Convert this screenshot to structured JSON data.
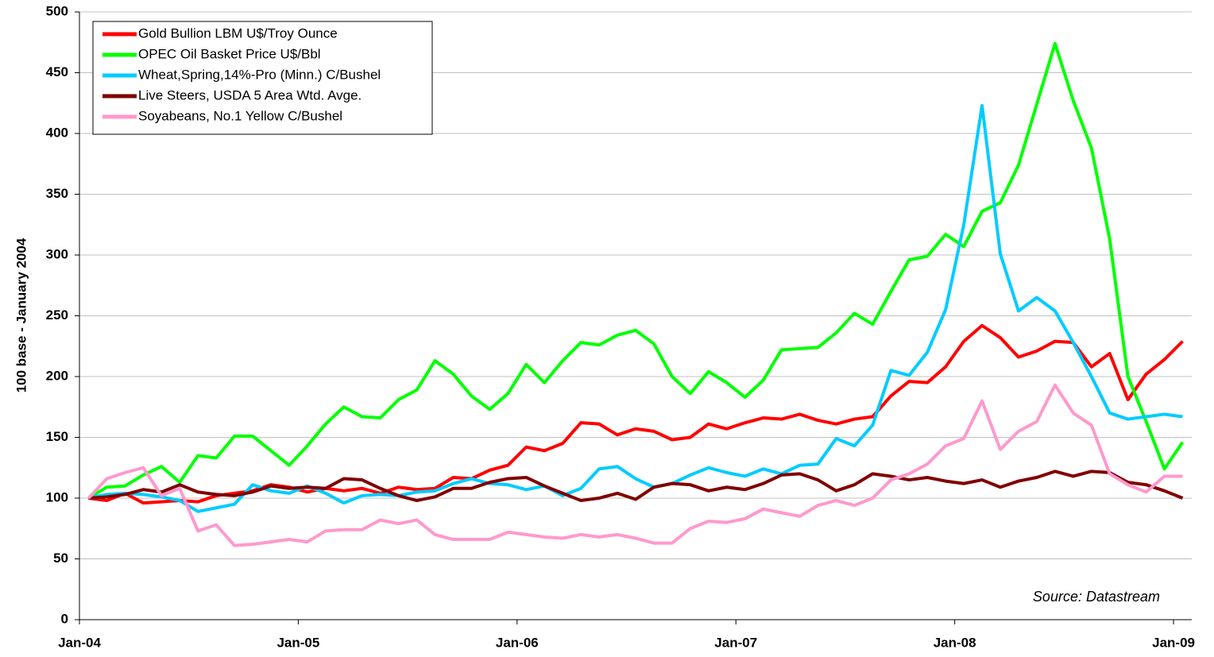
{
  "chart_data": {
    "type": "line",
    "ylabel": "100 base - January 2004",
    "annotation": "Source: Datastream",
    "categories": [
      "Jan-04",
      null,
      null,
      null,
      null,
      null,
      null,
      null,
      null,
      null,
      null,
      null,
      "Jan-05",
      null,
      null,
      null,
      null,
      null,
      null,
      null,
      null,
      null,
      null,
      null,
      "Jan-06",
      null,
      null,
      null,
      null,
      null,
      null,
      null,
      null,
      null,
      null,
      null,
      "Jan-07",
      null,
      null,
      null,
      null,
      null,
      null,
      null,
      null,
      null,
      null,
      null,
      "Jan-08",
      null,
      null,
      null,
      null,
      null,
      null,
      null,
      null,
      null,
      null,
      null,
      "Jan-09"
    ],
    "ylim": [
      0,
      500
    ],
    "yticks": [
      0,
      50,
      100,
      150,
      200,
      250,
      300,
      350,
      400,
      450,
      500
    ],
    "grid": true,
    "legend": "upper left",
    "series": [
      {
        "name": "Gold Bullion LBM U$/Troy Ounce",
        "color": "#ff0000",
        "values": [
          100,
          98,
          104,
          96,
          97,
          98,
          97,
          102,
          104,
          106,
          111,
          109,
          105,
          108,
          106,
          108,
          104,
          109,
          107,
          108,
          117,
          116,
          123,
          127,
          142,
          139,
          145,
          162,
          161,
          152,
          157,
          155,
          148,
          150,
          161,
          157,
          162,
          166,
          165,
          169,
          164,
          161,
          165,
          167,
          184,
          196,
          195,
          208,
          229,
          242,
          232,
          216,
          221,
          229,
          228,
          208,
          219,
          181,
          202,
          214,
          229
        ]
      },
      {
        "name": "OPEC Oil Basket Price U$/Bbl",
        "color": "#00ff00",
        "values": [
          100,
          109,
          110,
          119,
          126,
          113,
          135,
          133,
          151,
          151,
          139,
          127,
          143,
          161,
          175,
          167,
          166,
          181,
          189,
          213,
          202,
          184,
          173,
          186,
          210,
          195,
          213,
          228,
          226,
          234,
          238,
          227,
          200,
          186,
          204,
          195,
          183,
          197,
          222,
          223,
          224,
          236,
          252,
          243,
          270,
          296,
          299,
          317,
          307,
          336,
          343,
          374,
          424,
          474,
          427,
          388,
          313,
          200,
          163,
          124,
          146
        ]
      },
      {
        "name": "Wheat,Spring,14%-Pro (Minn.) C/Bushel",
        "color": "#00ccff",
        "values": [
          100,
          103,
          104,
          103,
          101,
          98,
          89,
          92,
          95,
          111,
          106,
          104,
          110,
          104,
          96,
          102,
          103,
          102,
          105,
          106,
          112,
          116,
          112,
          111,
          107,
          110,
          102,
          108,
          124,
          126,
          116,
          109,
          112,
          119,
          125,
          121,
          118,
          124,
          120,
          127,
          128,
          149,
          143,
          160,
          205,
          201,
          220,
          255,
          325,
          423,
          301,
          254,
          265,
          254,
          228,
          200,
          170,
          165,
          167,
          169,
          167
        ]
      },
      {
        "name": "Live Steers, USDA 5 Area Wtd. Avge.",
        "color": "#800000",
        "values": [
          100,
          101,
          103,
          107,
          105,
          111,
          105,
          103,
          102,
          105,
          110,
          108,
          109,
          108,
          116,
          115,
          108,
          102,
          98,
          101,
          108,
          108,
          113,
          116,
          117,
          110,
          104,
          98,
          100,
          104,
          99,
          109,
          112,
          111,
          106,
          109,
          107,
          112,
          119,
          120,
          115,
          106,
          111,
          120,
          118,
          115,
          117,
          114,
          112,
          115,
          109,
          114,
          117,
          122,
          118,
          122,
          121,
          113,
          111,
          106,
          100
        ]
      },
      {
        "name": "Soyabeans, No.1 Yellow C/Bushel",
        "color": "#ff99cc",
        "values": [
          100,
          116,
          121,
          125,
          102,
          108,
          73,
          78,
          61,
          62,
          64,
          66,
          64,
          73,
          74,
          74,
          82,
          79,
          82,
          70,
          66,
          66,
          66,
          72,
          70,
          68,
          67,
          70,
          68,
          70,
          67,
          63,
          63,
          75,
          81,
          80,
          83,
          91,
          88,
          85,
          94,
          98,
          94,
          100,
          115,
          120,
          128,
          143,
          149,
          180,
          140,
          155,
          163,
          193,
          170,
          160,
          120,
          111,
          105,
          118,
          118
        ]
      }
    ]
  }
}
